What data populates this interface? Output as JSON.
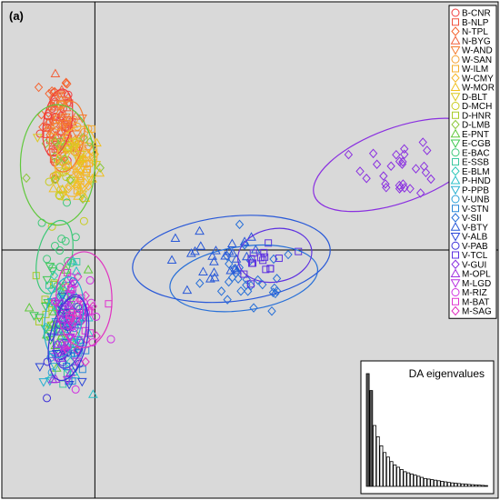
{
  "chart_data": {
    "type": "scatter",
    "panel_label": "(a)",
    "title": "",
    "xlabel": "",
    "ylabel": "",
    "xlim": [
      -3,
      13
    ],
    "ylim": [
      -7,
      7
    ],
    "grid": false,
    "axes_cross": [
      0,
      0
    ],
    "legend_position": "top-right",
    "series": [
      {
        "name": "B-CNR",
        "color": "#f03c3c",
        "marker": "circle",
        "center": [
          -1.2,
          3.6
        ],
        "spread": [
          0.5,
          1.1
        ],
        "n": 22
      },
      {
        "name": "B-NLP",
        "color": "#f0503c",
        "marker": "square",
        "center": [
          -1.0,
          3.3
        ],
        "spread": [
          0.5,
          1.0
        ],
        "n": 18
      },
      {
        "name": "N-TPL",
        "color": "#f46430",
        "marker": "diamond",
        "center": [
          -1.3,
          3.9
        ],
        "spread": [
          0.45,
          1.0
        ],
        "n": 20
      },
      {
        "name": "N-BYG",
        "color": "#f2603a",
        "marker": "triangle-up",
        "center": [
          -1.1,
          3.6
        ],
        "spread": [
          0.5,
          1.0
        ],
        "n": 18
      },
      {
        "name": "W-AND",
        "color": "#f47c30",
        "marker": "triangle-down",
        "center": [
          -0.9,
          3.2
        ],
        "spread": [
          0.6,
          1.1
        ],
        "n": 20
      },
      {
        "name": "W-SAN",
        "color": "#f5a030",
        "marker": "circle",
        "center": [
          -0.7,
          2.9
        ],
        "spread": [
          0.6,
          1.0
        ],
        "n": 18
      },
      {
        "name": "W-ILM",
        "color": "#f5ac2a",
        "marker": "square",
        "center": [
          -0.6,
          2.6
        ],
        "spread": [
          0.6,
          1.0
        ],
        "n": 18
      },
      {
        "name": "W-CMY",
        "color": "#f5b82a",
        "marker": "diamond",
        "center": [
          -0.5,
          2.4
        ],
        "spread": [
          0.7,
          1.0
        ],
        "n": 20
      },
      {
        "name": "W-MOR",
        "color": "#f0c020",
        "marker": "triangle-up",
        "center": [
          -0.5,
          2.2
        ],
        "spread": [
          0.7,
          1.0
        ],
        "n": 18
      },
      {
        "name": "D-BLT",
        "color": "#dcc820",
        "marker": "triangle-down",
        "center": [
          -0.7,
          2.6
        ],
        "spread": [
          0.6,
          0.9
        ],
        "n": 16
      },
      {
        "name": "D-MCH",
        "color": "#c8cc20",
        "marker": "circle",
        "center": [
          -1.1,
          1.8
        ],
        "spread": [
          0.5,
          0.9
        ],
        "n": 14
      },
      {
        "name": "D-HNR",
        "color": "#a8cc28",
        "marker": "square",
        "center": [
          -1.3,
          -1.5
        ],
        "spread": [
          0.6,
          1.2
        ],
        "n": 14
      },
      {
        "name": "D-LMB",
        "color": "#8cc83c",
        "marker": "diamond",
        "center": [
          -1.2,
          2.5
        ],
        "spread": [
          0.9,
          1.2
        ],
        "n": 14
      },
      {
        "name": "E-PNT",
        "color": "#60c83c",
        "marker": "triangle-up",
        "center": [
          -1.0,
          -1.8
        ],
        "spread": [
          0.7,
          1.3
        ],
        "n": 16
      },
      {
        "name": "E-CGB",
        "color": "#3cc850",
        "marker": "triangle-down",
        "center": [
          -1.3,
          -1.6
        ],
        "spread": [
          0.6,
          1.2
        ],
        "n": 14
      },
      {
        "name": "E-BAC",
        "color": "#3cc878",
        "marker": "circle",
        "center": [
          -1.2,
          -0.2
        ],
        "spread": [
          0.6,
          1.2
        ],
        "n": 14
      },
      {
        "name": "E-SSB",
        "color": "#3cc8a0",
        "marker": "square",
        "center": [
          -0.9,
          -1.9
        ],
        "spread": [
          0.6,
          1.3
        ],
        "n": 14
      },
      {
        "name": "E-BLM",
        "color": "#30c8b8",
        "marker": "diamond",
        "center": [
          -1.1,
          -2.1
        ],
        "spread": [
          0.6,
          1.3
        ],
        "n": 14
      },
      {
        "name": "P-HND",
        "color": "#28c0c8",
        "marker": "triangle-up",
        "center": [
          -0.8,
          -2.1
        ],
        "spread": [
          0.6,
          1.4
        ],
        "n": 14
      },
      {
        "name": "P-PPB",
        "color": "#28b0d0",
        "marker": "triangle-down",
        "center": [
          -1.0,
          -2.4
        ],
        "spread": [
          0.6,
          1.3
        ],
        "n": 14
      },
      {
        "name": "V-UNB",
        "color": "#28a0d8",
        "marker": "circle",
        "center": [
          -0.9,
          -2.6
        ],
        "spread": [
          0.6,
          1.3
        ],
        "n": 14
      },
      {
        "name": "V-STN",
        "color": "#2888d8",
        "marker": "square",
        "center": [
          -0.7,
          -2.9
        ],
        "spread": [
          0.6,
          1.3
        ],
        "n": 14
      },
      {
        "name": "V-SII",
        "color": "#2870d8",
        "marker": "diamond",
        "center": [
          5.0,
          -0.9
        ],
        "spread": [
          1.4,
          0.9
        ],
        "n": 30
      },
      {
        "name": "V-BTY",
        "color": "#2858d8",
        "marker": "triangle-up",
        "center": [
          3.8,
          -0.4
        ],
        "spread": [
          1.6,
          0.9
        ],
        "n": 26
      },
      {
        "name": "V-ALB",
        "color": "#2844d8",
        "marker": "triangle-down",
        "center": [
          -0.9,
          -2.7
        ],
        "spread": [
          0.6,
          1.2
        ],
        "n": 16
      },
      {
        "name": "V-PAB",
        "color": "#3c30d8",
        "marker": "circle",
        "center": [
          -0.8,
          -2.5
        ],
        "spread": [
          0.6,
          1.2
        ],
        "n": 16
      },
      {
        "name": "V-TCL",
        "color": "#5c30e0",
        "marker": "square",
        "center": [
          5.5,
          -0.3
        ],
        "spread": [
          0.8,
          0.7
        ],
        "n": 16
      },
      {
        "name": "V-GUI",
        "color": "#8a30e0",
        "marker": "diamond",
        "center": [
          9.9,
          2.3
        ],
        "spread": [
          1.1,
          0.7
        ],
        "n": 28
      },
      {
        "name": "M-OPL",
        "color": "#a030e0",
        "marker": "triangle-up",
        "center": [
          -0.9,
          -2.4
        ],
        "spread": [
          0.5,
          1.1
        ],
        "n": 16
      },
      {
        "name": "M-LGD",
        "color": "#b830e0",
        "marker": "triangle-down",
        "center": [
          -0.9,
          -2.2
        ],
        "spread": [
          0.5,
          1.1
        ],
        "n": 16
      },
      {
        "name": "M-RIZ",
        "color": "#d030e0",
        "marker": "circle",
        "center": [
          -0.4,
          -1.5
        ],
        "spread": [
          0.7,
          1.1
        ],
        "n": 14
      },
      {
        "name": "M-BAT",
        "color": "#e030d0",
        "marker": "square",
        "center": [
          -0.6,
          -2.0
        ],
        "spread": [
          0.6,
          1.1
        ],
        "n": 14
      },
      {
        "name": "M-SAG",
        "color": "#e030c0",
        "marker": "diamond",
        "center": [
          -0.5,
          -1.8
        ],
        "spread": [
          0.6,
          1.1
        ],
        "n": 14
      }
    ],
    "ellipses": [
      {
        "color": "#f03c3c",
        "cx": -1.2,
        "cy": 3.6,
        "rx": 0.45,
        "ry": 0.95,
        "angle": -10
      },
      {
        "color": "#f47c30",
        "cx": -0.9,
        "cy": 3.2,
        "rx": 0.55,
        "ry": 1.0,
        "angle": -8
      },
      {
        "color": "#f5b82a",
        "cx": -0.6,
        "cy": 2.5,
        "rx": 0.65,
        "ry": 1.0,
        "angle": -10
      },
      {
        "color": "#60c83c",
        "cx": -1.2,
        "cy": 2.4,
        "rx": 1.2,
        "ry": 1.7,
        "angle": 0
      },
      {
        "color": "#3cc878",
        "cx": -1.3,
        "cy": -0.2,
        "rx": 0.55,
        "ry": 1.05,
        "angle": -12
      },
      {
        "color": "#28b0d0",
        "cx": -1.0,
        "cy": -1.9,
        "rx": 0.6,
        "ry": 1.15,
        "angle": -10
      },
      {
        "color": "#3c30d8",
        "cx": -0.85,
        "cy": -2.5,
        "rx": 0.6,
        "ry": 1.2,
        "angle": -12
      },
      {
        "color": "#5c30e0",
        "cx": -0.8,
        "cy": -2.3,
        "rx": 0.5,
        "ry": 1.05,
        "angle": -10
      },
      {
        "color": "#e030c0",
        "cx": -0.35,
        "cy": -1.4,
        "rx": 0.9,
        "ry": 1.35,
        "angle": 0
      },
      {
        "color": "#2870d8",
        "cx": 4.8,
        "cy": -0.8,
        "rx": 2.4,
        "ry": 0.9,
        "angle": 8
      },
      {
        "color": "#2858d8",
        "cx": 4.4,
        "cy": -0.25,
        "rx": 3.2,
        "ry": 1.2,
        "angle": 6
      },
      {
        "color": "#5c30e0",
        "cx": 5.8,
        "cy": -0.15,
        "rx": 1.2,
        "ry": 0.75,
        "angle": 10
      },
      {
        "color": "#8a30e0",
        "cx": 9.8,
        "cy": 2.4,
        "rx": 2.9,
        "ry": 1.05,
        "angle": 20
      }
    ],
    "inset": {
      "title": "DA eigenvalues",
      "type": "bar",
      "values": [
        100,
        85,
        54,
        44,
        36,
        30,
        26,
        22,
        19,
        17,
        15,
        13,
        12,
        11,
        10,
        9,
        8,
        7,
        6.5,
        6,
        5.5,
        5,
        4.5,
        4,
        3.5,
        3.1,
        2.8,
        2.5,
        2.2,
        2.0,
        1.7,
        1.5,
        1.3,
        1.1,
        0.9,
        0.7
      ],
      "highlighted": 2
    }
  }
}
